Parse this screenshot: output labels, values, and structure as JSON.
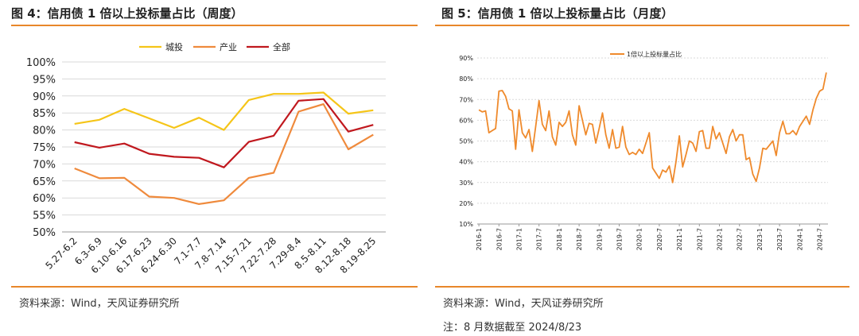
{
  "left_panel": {
    "title": "图 4：信用债 1 倍以上投标量占比（周度）",
    "source": "资料来源：Wind，天风证券研究所"
  },
  "right_panel": {
    "title": "图 5：信用债 1 倍以上投标量占比（月度）",
    "source": "资料来源：Wind，天风证券研究所",
    "note": "注：8 月数据截至 2024/8/23"
  },
  "colors": {
    "accent_rule": "#e8872a",
    "城投": "#f5c518",
    "产业": "#ef8a3c",
    "全部": "#c0181e",
    "monthly": "#ef8a2c"
  },
  "chart_data": [
    {
      "type": "line",
      "categories": [
        "5.27-6.2",
        "6.3-6.9",
        "6.10-6.16",
        "6.17-6.23",
        "6.24-6.30",
        "7.1-7.7",
        "7.8-7.14",
        "7.15-7.21",
        "7.22-7.28",
        "7.29-8.4",
        "8.5-8.11",
        "8.12-8.18",
        "8.19-8.25"
      ],
      "series": [
        {
          "name": "城投",
          "values": [
            81.8,
            83.0,
            86.2,
            83.4,
            80.6,
            83.6,
            80.0,
            88.8,
            90.6,
            90.6,
            91.0,
            84.8,
            85.8
          ]
        },
        {
          "name": "产业",
          "values": [
            68.7,
            65.8,
            65.9,
            60.4,
            60.0,
            58.2,
            59.3,
            65.9,
            67.4,
            85.4,
            87.6,
            74.3,
            78.6
          ]
        },
        {
          "name": "全部",
          "values": [
            76.4,
            74.8,
            76.0,
            73.0,
            72.1,
            71.8,
            69.0,
            76.5,
            78.3,
            88.6,
            89.1,
            79.5,
            81.5
          ]
        }
      ],
      "ylim": [
        50,
        100
      ],
      "yticks": [
        "50%",
        "55%",
        "60%",
        "65%",
        "70%",
        "75%",
        "80%",
        "85%",
        "90%",
        "95%",
        "100%"
      ],
      "grid": true,
      "legend": "top-center"
    },
    {
      "type": "line",
      "series": [
        {
          "name": "1倍以上投标量占比",
          "values": [
            65,
            64,
            64.5,
            54,
            55,
            56,
            74,
            74.3,
            71.5,
            65.5,
            64.5,
            46,
            65,
            54,
            51.5,
            55.5,
            45,
            57,
            69.5,
            58,
            55,
            64.5,
            52,
            48,
            59,
            57,
            59,
            64.5,
            53,
            48,
            67,
            60,
            53,
            58.5,
            58,
            49,
            56,
            63.5,
            53,
            46.5,
            55.5,
            46.5,
            47,
            57,
            47,
            43.5,
            44.5,
            43.5,
            46,
            44,
            49,
            54,
            37,
            34.5,
            32,
            36,
            35,
            38,
            30,
            40,
            52.5,
            37.5,
            43.5,
            50,
            49,
            45,
            54.5,
            55,
            46.5,
            46.5,
            57,
            51,
            54,
            49,
            44,
            52,
            55.5,
            50,
            53,
            53,
            41,
            42,
            34,
            30.5,
            37,
            46.5,
            46,
            48,
            50,
            43,
            54,
            59.5,
            53.5,
            53.5,
            55,
            53,
            57,
            59.5,
            62,
            58,
            65,
            70.5,
            74,
            75,
            83
          ]
        }
      ],
      "xtick_labels": [
        "2016-1",
        "2016-7",
        "2017-1",
        "2017-7",
        "2018-1",
        "2018-7",
        "2019-1",
        "2019-7",
        "2020-1",
        "2020-7",
        "2021-1",
        "2021-7",
        "2022-1",
        "2022-7",
        "2023-1",
        "2023-7",
        "2024-1",
        "2024-7"
      ],
      "ylim": [
        10,
        90
      ],
      "yticks": [
        "10%",
        "20%",
        "30%",
        "40%",
        "50%",
        "60%",
        "70%",
        "80%",
        "90%"
      ],
      "grid": true,
      "legend": "top-center"
    }
  ]
}
